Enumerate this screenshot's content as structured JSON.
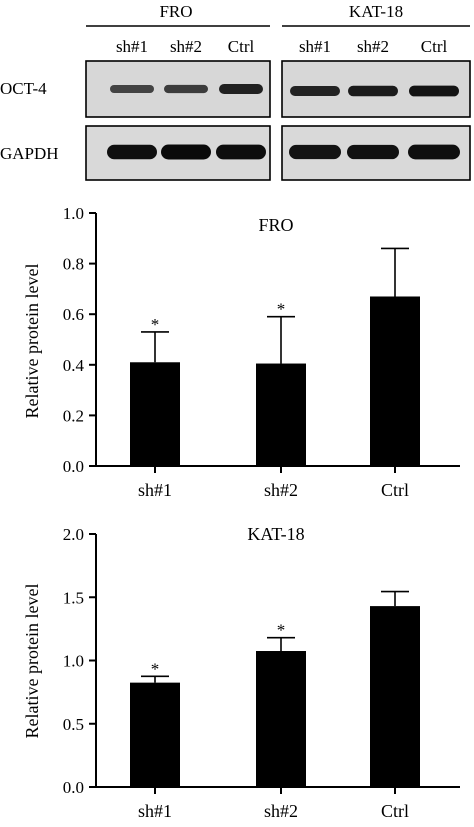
{
  "blot": {
    "groups": [
      {
        "label": "FRO",
        "lanes": [
          "sh#1",
          "sh#2",
          "Ctrl"
        ],
        "oct4_intensity": [
          0.62,
          0.66,
          0.88
        ],
        "gapdh_intensity": [
          0.95,
          1.0,
          0.97
        ]
      },
      {
        "label": "KAT-18",
        "lanes": [
          "sh#1",
          "sh#2",
          "Ctrl"
        ],
        "oct4_intensity": [
          0.86,
          0.93,
          0.98
        ],
        "gapdh_intensity": [
          0.92,
          0.93,
          0.96
        ]
      }
    ],
    "rows": [
      "OCT-4",
      "GAPDH"
    ]
  },
  "chart_data": [
    {
      "type": "bar",
      "title": "FRO",
      "categories": [
        "sh#1",
        "sh#2",
        "Ctrl"
      ],
      "values": [
        0.41,
        0.405,
        0.67
      ],
      "errors": [
        0.12,
        0.185,
        0.19
      ],
      "significance": [
        "*",
        "*",
        ""
      ],
      "xlabel": "",
      "ylabel": "Relative protein level",
      "ylim": [
        0,
        1.0
      ],
      "yticks": [
        "0.0",
        "0.2",
        "0.4",
        "0.6",
        "0.8",
        "1.0"
      ],
      "bar_color": "#000000",
      "grid": false
    },
    {
      "type": "bar",
      "title": "KAT-18",
      "categories": [
        "sh#1",
        "sh#2",
        "Ctrl"
      ],
      "values": [
        0.825,
        1.075,
        1.43
      ],
      "errors": [
        0.05,
        0.105,
        0.115
      ],
      "significance": [
        "*",
        "*",
        ""
      ],
      "xlabel": "",
      "ylabel": "Relative protein level",
      "ylim": [
        0,
        2.0
      ],
      "yticks": [
        "0.0",
        "0.5",
        "1.0",
        "1.5",
        "2.0"
      ],
      "bar_color": "#000000",
      "grid": false
    }
  ]
}
